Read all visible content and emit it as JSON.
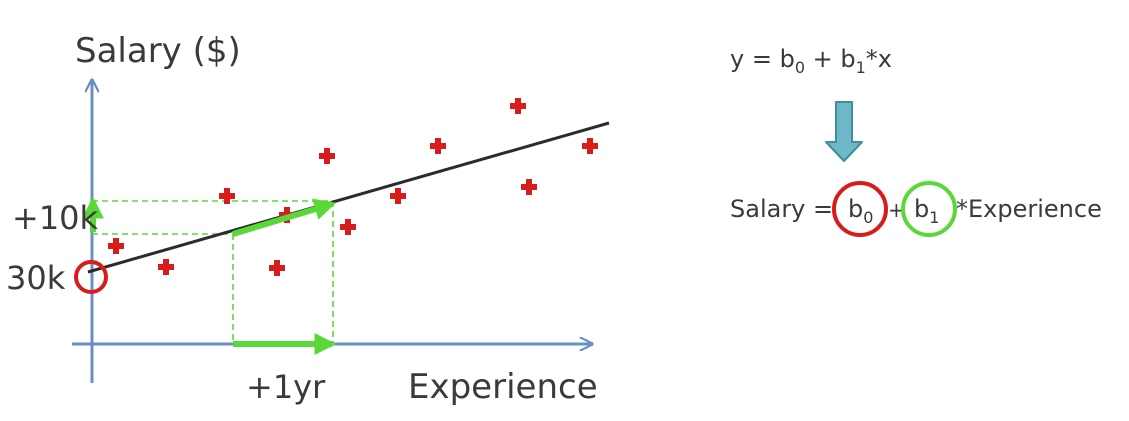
{
  "axes": {
    "y_label": "Salary ($)",
    "x_label": "Experience"
  },
  "annotations": {
    "intercept_label": "30k",
    "slope_rise_label": "+10k",
    "slope_run_label": "+1yr"
  },
  "formula": {
    "general": {
      "lhs": "y = b",
      "b0_sub": "0",
      "mid": " + b",
      "b1_sub": "1",
      "rhs": "*x"
    },
    "specific": {
      "lhs": "Salary =",
      "b0_main": "b",
      "b0_sub": "0",
      "plus": "+",
      "b1_main": "b",
      "b1_sub": "1",
      "rhs": "*Experience"
    }
  },
  "colors": {
    "axis": "#6b8fc4",
    "regression_line": "#2b2b2b",
    "data_point": "#d81c1c",
    "slope_arrow": "#5ad83a",
    "guide_dash": "#5ad83a",
    "intercept_circle": "#d81c1c",
    "slope_circle": "#5ad83a",
    "down_arrow_fill": "#6fb8c8",
    "down_arrow_stroke": "#3f8e9e"
  },
  "points_count_note": ""
}
